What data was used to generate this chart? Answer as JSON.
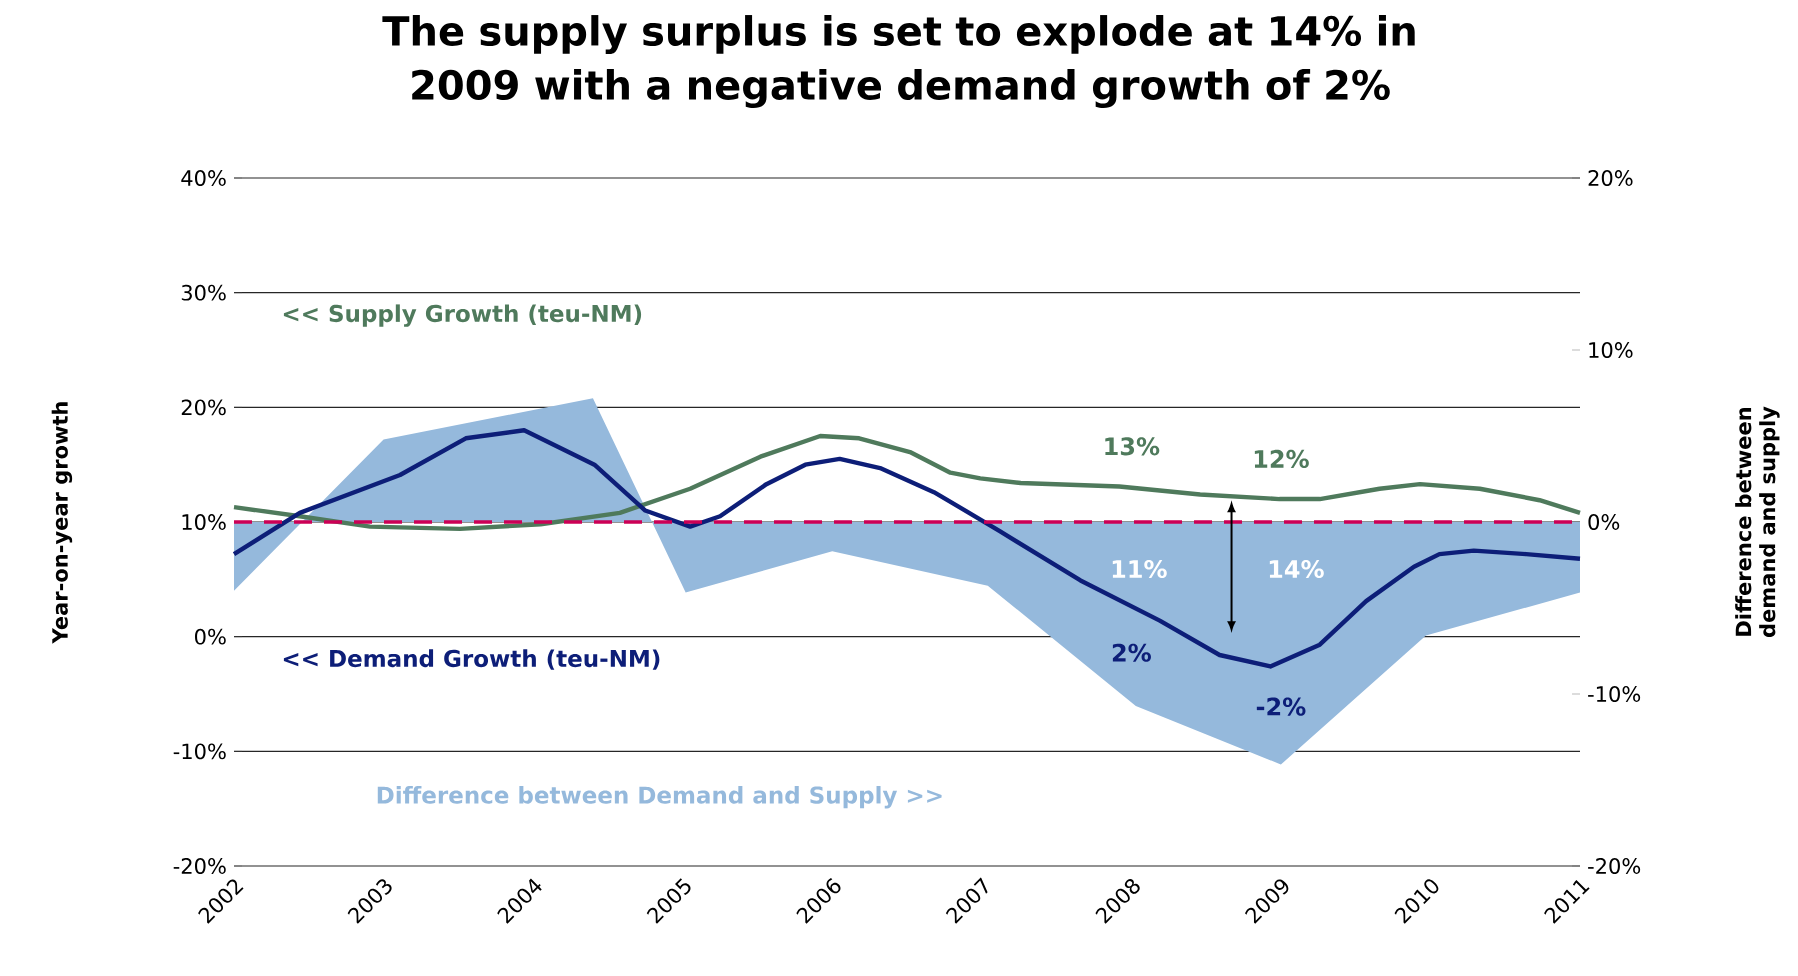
{
  "chart_data": {
    "type": "line",
    "title": "The supply surplus is set to explode at 14% in 2009 with a negative demand growth of 2%",
    "ylabel": "Year-on-year growth",
    "y2label": "Difference between demand and supply",
    "xlim": [
      2002,
      2011
    ],
    "xticks": [
      2002,
      2003,
      2004,
      2005,
      2006,
      2007,
      2008,
      2009,
      2010,
      2011
    ],
    "ylim": [
      -20,
      40
    ],
    "yticks": [
      {
        "value": -20,
        "label": "-20%"
      },
      {
        "value": -10,
        "label": "-10%"
      },
      {
        "value": 0,
        "label": "0%"
      },
      {
        "value": 10,
        "label": "10%"
      },
      {
        "value": 20,
        "label": "20%"
      },
      {
        "value": 30,
        "label": "30%"
      },
      {
        "value": 40,
        "label": "40%"
      }
    ],
    "y2lim": [
      -20,
      20
    ],
    "y2ticks": [
      {
        "value": -20,
        "label": "-20%"
      },
      {
        "value": -10,
        "label": "-10%"
      },
      {
        "value": 0,
        "label": "0%"
      },
      {
        "value": 10,
        "label": "10%"
      },
      {
        "value": 20,
        "label": "20%"
      }
    ],
    "grid": "y",
    "series": [
      {
        "name": "Difference between Demand  and Supply >>",
        "type": "area",
        "axis": "y2",
        "color": "#95b9dc",
        "x": [
          2002.0,
          2003.0,
          2004.4,
          2005.02,
          2006.0,
          2007.04,
          2008.03,
          2009.0,
          2009.97,
          2011.0
        ],
        "values": [
          -4.0,
          4.8,
          7.2,
          -4.1,
          -1.7,
          -3.7,
          -10.7,
          -14.1,
          -6.6,
          -4.1
        ]
      },
      {
        "name": "<< Supply Growth (teu-NM)",
        "color": "#4f7a5c",
        "x": [
          2002.0,
          2002.44,
          2002.91,
          2003.51,
          2004.05,
          2004.58,
          2005.05,
          2005.52,
          2005.92,
          2006.18,
          2006.52,
          2006.79,
          2006.99,
          2007.26,
          2007.92,
          2008.46,
          2008.99,
          2009.26,
          2009.66,
          2009.93,
          2010.33,
          2010.73,
          2011.0
        ],
        "values": [
          11.3,
          10.5,
          9.6,
          9.4,
          9.8,
          10.8,
          12.9,
          15.7,
          17.5,
          17.3,
          16.1,
          14.3,
          13.8,
          13.4,
          13.1,
          12.4,
          12.0,
          12.0,
          12.9,
          13.3,
          12.9,
          11.9,
          10.8
        ]
      },
      {
        "name": "<< Demand Growth (teu-NM)",
        "color": "#0d1e78",
        "x": [
          2002.0,
          2002.44,
          2003.11,
          2003.55,
          2003.94,
          2004.41,
          2004.75,
          2005.05,
          2005.25,
          2005.56,
          2005.82,
          2006.05,
          2006.32,
          2006.68,
          2006.85,
          2007.12,
          2007.66,
          2008.19,
          2008.59,
          2008.93,
          2009.26,
          2009.57,
          2009.89,
          2010.06,
          2010.29,
          2010.64,
          2011.0
        ],
        "values": [
          7.2,
          10.8,
          14.1,
          17.3,
          18.0,
          15.0,
          11.0,
          9.6,
          10.5,
          13.3,
          15.0,
          15.5,
          14.7,
          12.6,
          11.3,
          9.2,
          4.9,
          1.4,
          -1.6,
          -2.6,
          -0.7,
          3.1,
          6.1,
          7.2,
          7.5,
          7.2,
          6.8
        ]
      }
    ],
    "ref_lines": [
      {
        "axis": "y",
        "value": 10,
        "color": "#cc0055",
        "line_style": "dashed"
      }
    ],
    "annotations": [
      "13%",
      "12%",
      "11%",
      "14%",
      "2%",
      "-2%"
    ]
  }
}
